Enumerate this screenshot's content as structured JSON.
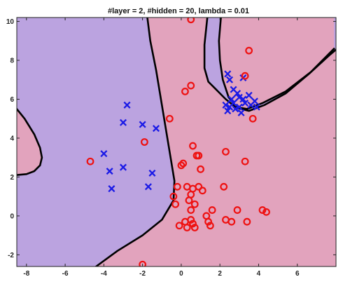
{
  "chart_data": {
    "type": "scatter",
    "title": "#layer = 2, #hidden = 20, lambda = 0.01",
    "xlabel": "",
    "ylabel": "",
    "xlim": [
      -8.5,
      8.0
    ],
    "ylim": [
      -2.6,
      10.2
    ],
    "x_ticks": [
      -8,
      -6,
      -4,
      -2,
      0,
      2,
      4,
      6
    ],
    "y_ticks": [
      -2,
      0,
      2,
      4,
      6,
      8,
      10
    ],
    "x_tick_labels": [
      "-8",
      "-6",
      "-4",
      "-2",
      "0",
      "2",
      "4",
      "6"
    ],
    "y_tick_labels": [
      "-2",
      "0",
      "2",
      "4",
      "6",
      "8",
      "10"
    ],
    "grid": false,
    "legend": "none",
    "colors": {
      "region_x": "#bba3e0",
      "region_o": "#e2a3bd",
      "boundary": "#000000",
      "marker_x": "#1a1ae6",
      "marker_o": "#ee1111"
    },
    "decision_regions": {
      "region_x_polygons": [
        [
          [
            -8.5,
            10.2
          ],
          [
            -1.75,
            10.2
          ],
          [
            -1.6,
            9.0
          ],
          [
            -1.3,
            7.5
          ],
          [
            -1.05,
            6.0
          ],
          [
            -0.8,
            4.5
          ],
          [
            -0.55,
            3.0
          ],
          [
            -0.35,
            1.8
          ],
          [
            -0.4,
            0.8
          ],
          [
            -1.0,
            -0.2
          ],
          [
            -2.0,
            -1.0
          ],
          [
            -3.3,
            -1.8
          ],
          [
            -4.4,
            -2.6
          ],
          [
            -8.5,
            -2.6
          ],
          [
            -8.5,
            2.1
          ],
          [
            -8.0,
            2.15
          ],
          [
            -7.6,
            2.3
          ],
          [
            -7.3,
            2.6
          ],
          [
            -7.2,
            3.0
          ],
          [
            -7.3,
            3.5
          ],
          [
            -7.6,
            4.2
          ],
          [
            -8.1,
            5.0
          ],
          [
            -8.5,
            5.5
          ]
        ],
        [
          [
            1.35,
            10.2
          ],
          [
            2.05,
            10.2
          ],
          [
            1.95,
            9.0
          ],
          [
            2.0,
            8.0
          ],
          [
            2.15,
            7.0
          ],
          [
            2.45,
            6.1
          ],
          [
            2.9,
            5.55
          ],
          [
            3.5,
            5.4
          ],
          [
            4.3,
            5.7
          ],
          [
            5.4,
            6.3
          ],
          [
            6.6,
            7.3
          ],
          [
            7.7,
            8.3
          ],
          [
            8.0,
            8.55
          ],
          [
            8.0,
            10.2
          ],
          [
            7.9,
            10.2
          ],
          [
            7.9,
            8.6
          ],
          [
            6.7,
            7.4
          ],
          [
            5.4,
            6.4
          ],
          [
            4.2,
            5.8
          ],
          [
            3.4,
            5.5
          ],
          [
            2.8,
            5.6
          ],
          [
            2.3,
            6.0
          ],
          [
            1.8,
            6.5
          ],
          [
            1.4,
            6.9
          ],
          [
            1.2,
            7.6
          ],
          [
            1.2,
            8.8
          ]
        ]
      ],
      "boundaries": [
        [
          [
            -1.75,
            10.2
          ],
          [
            -1.6,
            9.0
          ],
          [
            -1.3,
            7.5
          ],
          [
            -1.05,
            6.0
          ],
          [
            -0.8,
            4.5
          ],
          [
            -0.55,
            3.0
          ],
          [
            -0.35,
            1.8
          ],
          [
            -0.4,
            0.8
          ],
          [
            -1.0,
            -0.2
          ],
          [
            -2.0,
            -1.0
          ],
          [
            -3.3,
            -1.8
          ],
          [
            -4.4,
            -2.6
          ]
        ],
        [
          [
            -8.5,
            5.5
          ],
          [
            -8.1,
            5.0
          ],
          [
            -7.6,
            4.2
          ],
          [
            -7.3,
            3.5
          ],
          [
            -7.2,
            3.0
          ],
          [
            -7.3,
            2.6
          ],
          [
            -7.6,
            2.3
          ],
          [
            -8.0,
            2.15
          ],
          [
            -8.5,
            2.1
          ]
        ],
        [
          [
            1.35,
            10.2
          ],
          [
            1.2,
            8.8
          ],
          [
            1.2,
            7.6
          ],
          [
            1.4,
            6.9
          ],
          [
            1.8,
            6.5
          ],
          [
            2.3,
            6.0
          ],
          [
            2.8,
            5.6
          ],
          [
            3.4,
            5.5
          ],
          [
            4.2,
            5.8
          ],
          [
            5.4,
            6.4
          ],
          [
            6.7,
            7.4
          ],
          [
            7.9,
            8.6
          ]
        ],
        [
          [
            2.05,
            10.2
          ],
          [
            1.95,
            9.0
          ],
          [
            2.0,
            8.0
          ],
          [
            2.15,
            7.0
          ],
          [
            2.45,
            6.1
          ],
          [
            2.9,
            5.55
          ],
          [
            3.5,
            5.4
          ],
          [
            4.3,
            5.7
          ],
          [
            5.4,
            6.3
          ],
          [
            6.6,
            7.3
          ],
          [
            7.7,
            8.3
          ],
          [
            8.0,
            8.55
          ]
        ]
      ]
    },
    "series": [
      {
        "marker": "x",
        "points": [
          [
            -2.8,
            5.7
          ],
          [
            -3.0,
            4.8
          ],
          [
            -2.0,
            4.7
          ],
          [
            -1.3,
            4.5
          ],
          [
            -4.0,
            3.2
          ],
          [
            -3.7,
            2.3
          ],
          [
            -3.0,
            2.5
          ],
          [
            -1.5,
            2.2
          ],
          [
            -1.7,
            1.5
          ],
          [
            -3.6,
            1.4
          ],
          [
            2.4,
            7.3
          ],
          [
            2.5,
            7.0
          ],
          [
            3.2,
            7.1
          ],
          [
            2.7,
            6.5
          ],
          [
            2.9,
            6.3
          ],
          [
            3.0,
            6.1
          ],
          [
            3.2,
            6.0
          ],
          [
            3.5,
            6.2
          ],
          [
            3.8,
            5.9
          ],
          [
            2.6,
            6.0
          ],
          [
            2.7,
            5.8
          ],
          [
            2.3,
            5.7
          ],
          [
            2.5,
            5.6
          ],
          [
            2.8,
            5.5
          ],
          [
            3.0,
            5.6
          ],
          [
            3.3,
            5.8
          ],
          [
            3.6,
            5.7
          ],
          [
            2.4,
            5.4
          ],
          [
            3.1,
            5.3
          ],
          [
            3.9,
            5.6
          ]
        ]
      },
      {
        "marker": "o",
        "points": [
          [
            0.5,
            10.1
          ],
          [
            3.5,
            8.5
          ],
          [
            3.3,
            7.2
          ],
          [
            0.5,
            6.7
          ],
          [
            0.2,
            6.4
          ],
          [
            -0.6,
            5.0
          ],
          [
            3.7,
            5.0
          ],
          [
            -1.9,
            3.8
          ],
          [
            0.6,
            3.6
          ],
          [
            0.8,
            3.1
          ],
          [
            0.9,
            3.1
          ],
          [
            2.3,
            3.3
          ],
          [
            -4.7,
            2.8
          ],
          [
            0.0,
            2.6
          ],
          [
            0.1,
            2.7
          ],
          [
            1.0,
            2.4
          ],
          [
            3.3,
            2.8
          ],
          [
            -0.2,
            1.5
          ],
          [
            0.3,
            1.5
          ],
          [
            0.5,
            1.1
          ],
          [
            0.6,
            1.4
          ],
          [
            0.9,
            1.5
          ],
          [
            1.1,
            1.3
          ],
          [
            2.2,
            1.5
          ],
          [
            -0.4,
            1.0
          ],
          [
            0.4,
            0.8
          ],
          [
            0.7,
            0.6
          ],
          [
            -0.3,
            0.6
          ],
          [
            0.5,
            0.3
          ],
          [
            1.6,
            0.3
          ],
          [
            2.9,
            0.3
          ],
          [
            1.3,
            0.0
          ],
          [
            -0.1,
            -0.5
          ],
          [
            0.2,
            -0.3
          ],
          [
            0.5,
            -0.2
          ],
          [
            0.6,
            -0.4
          ],
          [
            1.4,
            -0.3
          ],
          [
            2.3,
            -0.2
          ],
          [
            2.6,
            -0.3
          ],
          [
            3.4,
            -0.3
          ],
          [
            4.2,
            0.3
          ],
          [
            4.4,
            0.2
          ],
          [
            0.3,
            -0.6
          ],
          [
            1.5,
            -0.5
          ],
          [
            0.7,
            -0.6
          ],
          [
            -2.0,
            -2.5
          ]
        ]
      }
    ]
  }
}
